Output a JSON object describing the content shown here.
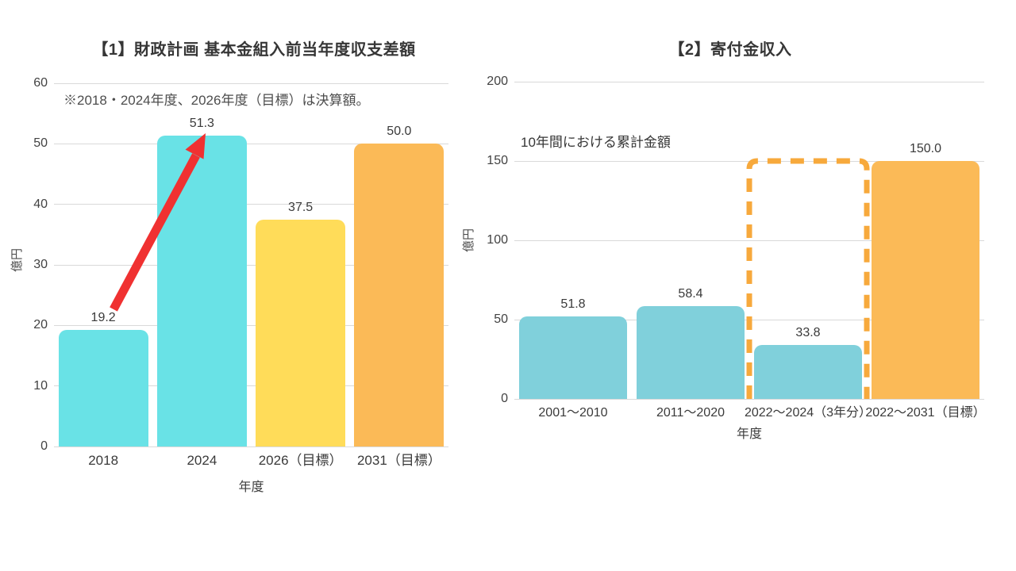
{
  "chart_data": [
    {
      "type": "bar",
      "title": "【1】財政計画 基本金組入前当年度収支差額",
      "note": "※2018・2024年度、2026年度（目標）は決算額。",
      "xlabel": "年度",
      "ylabel": "億円",
      "categories": [
        "2018",
        "2024",
        "2026（目標）",
        "2031（目標）"
      ],
      "values": [
        19.2,
        51.3,
        37.5,
        50.0
      ],
      "bar_colors": [
        "#69e2e6",
        "#69e2e6",
        "#ffdc59",
        "#fbba57"
      ],
      "ylim": [
        0,
        60
      ],
      "yticks": [
        0,
        10,
        20,
        30,
        40,
        50,
        60
      ],
      "grid": true,
      "legend": "none",
      "annotations": {
        "arrow": {
          "from_category": "2018",
          "to_category": "2024",
          "color": "#f03131"
        }
      }
    },
    {
      "type": "bar",
      "title": "【2】寄付金収入",
      "subtitle": "10年間における累計金額",
      "xlabel": "年度",
      "ylabel": "億円",
      "categories": [
        "2001〜2010",
        "2011〜2020",
        "2022〜2024（3年分）",
        "2022〜2031（目標）"
      ],
      "values": [
        51.8,
        58.4,
        33.8,
        150.0
      ],
      "bar_colors": [
        "#80d0db",
        "#80d0db",
        "#80d0db",
        "#fbba57"
      ],
      "ylim": [
        0,
        200
      ],
      "yticks": [
        0,
        50,
        100,
        150,
        200
      ],
      "grid": true,
      "legend": "none",
      "annotations": {
        "target_box": {
          "category_index": 2,
          "to_value": 150,
          "color": "#f7a93c",
          "style": "dashed"
        }
      }
    }
  ]
}
